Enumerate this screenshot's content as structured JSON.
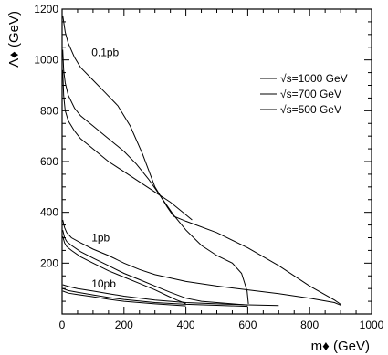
{
  "chart_data": {
    "type": "line",
    "title": "",
    "xlabel": "m♦ (GeV)",
    "ylabel": "Λ♦ (GeV)",
    "xlim": [
      0,
      1000
    ],
    "ylim": [
      0,
      1200
    ],
    "x_ticks": [
      0,
      200,
      400,
      600,
      800,
      1000
    ],
    "y_ticks": [
      200,
      400,
      600,
      800,
      1000,
      1200
    ],
    "x_tick_labels": [
      "0",
      "200",
      "400",
      "600",
      "800",
      "1000"
    ],
    "y_tick_labels": [
      "200",
      "400",
      "600",
      "800",
      "1000",
      "1200"
    ],
    "legend": {
      "position": "top-right",
      "entries": [
        "√s=1000 GeV",
        "√s=700 GeV",
        "√s=500 GeV"
      ]
    },
    "annotations": [
      {
        "text": "0.1pb",
        "x": 95,
        "y": 1015
      },
      {
        "text": "1pb",
        "x": 95,
        "y": 285
      },
      {
        "text": "10pb",
        "x": 95,
        "y": 105
      }
    ],
    "series": [
      {
        "label": "0.1pb, √s=1000 GeV",
        "points": [
          [
            2,
            1175
          ],
          [
            10,
            1110
          ],
          [
            20,
            1065
          ],
          [
            40,
            1010
          ],
          [
            60,
            970
          ],
          [
            100,
            920
          ],
          [
            140,
            870
          ],
          [
            180,
            820
          ],
          [
            220,
            740
          ],
          [
            260,
            630
          ],
          [
            300,
            500
          ],
          [
            340,
            420
          ],
          [
            360,
            385
          ],
          [
            400,
            365
          ],
          [
            500,
            320
          ],
          [
            600,
            260
          ],
          [
            700,
            190
          ],
          [
            800,
            110
          ],
          [
            880,
            55
          ],
          [
            900,
            38
          ]
        ]
      },
      {
        "label": "0.1pb, √s=700 GeV",
        "points": [
          [
            2,
            1040
          ],
          [
            5,
            960
          ],
          [
            10,
            910
          ],
          [
            20,
            860
          ],
          [
            40,
            810
          ],
          [
            60,
            780
          ],
          [
            80,
            760
          ],
          [
            100,
            740
          ],
          [
            120,
            720
          ],
          [
            140,
            700
          ],
          [
            160,
            680
          ],
          [
            200,
            640
          ],
          [
            240,
            590
          ],
          [
            280,
            530
          ],
          [
            320,
            460
          ],
          [
            360,
            390
          ],
          [
            400,
            330
          ],
          [
            450,
            270
          ],
          [
            500,
            230
          ],
          [
            550,
            200
          ],
          [
            580,
            160
          ],
          [
            598,
            90
          ],
          [
            602,
            40
          ]
        ]
      },
      {
        "label": "0.1pb, √s=500 GeV",
        "points": [
          [
            2,
            960
          ],
          [
            5,
            860
          ],
          [
            10,
            800
          ],
          [
            20,
            760
          ],
          [
            40,
            720
          ],
          [
            60,
            690
          ],
          [
            80,
            670
          ],
          [
            100,
            650
          ],
          [
            150,
            600
          ],
          [
            200,
            560
          ],
          [
            250,
            520
          ],
          [
            300,
            480
          ],
          [
            350,
            440
          ],
          [
            400,
            390
          ],
          [
            420,
            370
          ]
        ]
      },
      {
        "label": "1pb, √s=1000 GeV",
        "points": [
          [
            2,
            370
          ],
          [
            8,
            340
          ],
          [
            15,
            320
          ],
          [
            30,
            300
          ],
          [
            60,
            280
          ],
          [
            100,
            255
          ],
          [
            150,
            230
          ],
          [
            200,
            200
          ],
          [
            250,
            175
          ],
          [
            300,
            155
          ],
          [
            400,
            128
          ],
          [
            500,
            110
          ],
          [
            600,
            95
          ],
          [
            700,
            80
          ],
          [
            800,
            62
          ],
          [
            880,
            45
          ],
          [
            900,
            35
          ]
        ]
      },
      {
        "label": "1pb, √s=700 GeV",
        "points": [
          [
            2,
            330
          ],
          [
            8,
            300
          ],
          [
            15,
            285
          ],
          [
            30,
            270
          ],
          [
            60,
            245
          ],
          [
            100,
            220
          ],
          [
            150,
            190
          ],
          [
            200,
            160
          ],
          [
            250,
            135
          ],
          [
            300,
            110
          ],
          [
            350,
            85
          ],
          [
            400,
            62
          ],
          [
            450,
            50
          ],
          [
            500,
            45
          ],
          [
            550,
            40
          ],
          [
            600,
            35
          ]
        ]
      },
      {
        "label": "1pb, √s=500 GeV",
        "points": [
          [
            2,
            305
          ],
          [
            8,
            280
          ],
          [
            15,
            265
          ],
          [
            30,
            250
          ],
          [
            60,
            225
          ],
          [
            100,
            200
          ],
          [
            150,
            170
          ],
          [
            200,
            145
          ],
          [
            250,
            120
          ],
          [
            300,
            95
          ],
          [
            340,
            72
          ],
          [
            370,
            55
          ],
          [
            392,
            45
          ],
          [
            400,
            40
          ]
        ]
      },
      {
        "label": "10pb, √s=1000 GeV",
        "points": [
          [
            2,
            115
          ],
          [
            20,
            108
          ],
          [
            50,
            100
          ],
          [
            100,
            90
          ],
          [
            150,
            80
          ],
          [
            200,
            70
          ],
          [
            300,
            55
          ],
          [
            400,
            45
          ],
          [
            500,
            40
          ],
          [
            600,
            36
          ],
          [
            700,
            33
          ]
        ]
      },
      {
        "label": "10pb, √s=700 GeV",
        "points": [
          [
            2,
            100
          ],
          [
            20,
            92
          ],
          [
            50,
            85
          ],
          [
            100,
            75
          ],
          [
            150,
            65
          ],
          [
            200,
            57
          ],
          [
            300,
            45
          ],
          [
            400,
            38
          ],
          [
            500,
            34
          ],
          [
            600,
            30
          ]
        ]
      },
      {
        "label": "10pb, √s=500 GeV",
        "points": [
          [
            2,
            90
          ],
          [
            20,
            82
          ],
          [
            50,
            76
          ],
          [
            100,
            68
          ],
          [
            150,
            58
          ],
          [
            200,
            50
          ],
          [
            300,
            40
          ],
          [
            350,
            36
          ],
          [
            400,
            32
          ]
        ]
      }
    ]
  }
}
